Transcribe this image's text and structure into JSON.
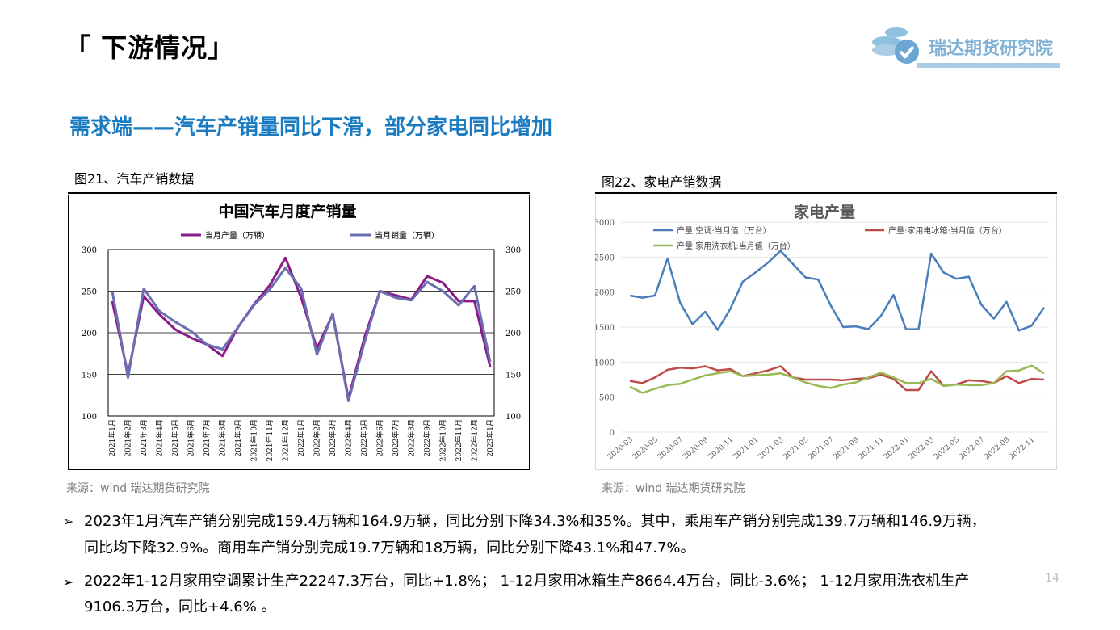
{
  "header": {
    "title": "「 下游情况」",
    "logo_text": "瑞达期货研究院"
  },
  "subtitle": "需求端——汽车产销量同比下滑，部分家电同比增加",
  "fig1": {
    "caption": "图21、汽车产销数据",
    "source": "来源：wind   瑞达期货研究院"
  },
  "fig2": {
    "caption": "图22、家电产销数据",
    "source": "来源：wind   瑞达期货研究院"
  },
  "chart_data": [
    {
      "type": "line",
      "title": "中国汽车月度产销量",
      "ylim": [
        100,
        300
      ],
      "yticks": [
        100,
        150,
        200,
        250,
        300
      ],
      "secondary_yticks": [
        100,
        150,
        200,
        250,
        300
      ],
      "legend_position": "top",
      "grid": true,
      "categories": [
        "2021年1月",
        "2021年2月",
        "2021年3月",
        "2021年4月",
        "2021年5月",
        "2021年6月",
        "2021年7月",
        "2021年8月",
        "2021年9月",
        "2021年10月",
        "2021年11月",
        "2021年12月",
        "2022年1月",
        "2022年2月",
        "2022年3月",
        "2022年4月",
        "2022年5月",
        "2022年6月",
        "2022年7月",
        "2022年8月",
        "2022年9月",
        "2022年10月",
        "2022年11月",
        "2022年12月",
        "2023年1月"
      ],
      "series": [
        {
          "name": "当月产量（万辆）",
          "color": "#8b1a89",
          "values": [
            238,
            150,
            244,
            222,
            204,
            194,
            186,
            172,
            207,
            234,
            257,
            290,
            242,
            181,
            222,
            121,
            193,
            250,
            245,
            240,
            268,
            260,
            238,
            238,
            159
          ]
        },
        {
          "name": "当月销量（万辆）",
          "color": "#6a6fb0",
          "values": [
            250,
            146,
            253,
            226,
            213,
            202,
            186,
            180,
            207,
            233,
            252,
            278,
            253,
            174,
            223,
            118,
            187,
            250,
            242,
            239,
            261,
            250,
            233,
            256,
            165
          ]
        }
      ]
    },
    {
      "type": "line",
      "title": "家电产量",
      "ylim": [
        0,
        3000
      ],
      "yticks": [
        0,
        500,
        1000,
        1500,
        2000,
        2500,
        3000
      ],
      "legend_position": "top",
      "grid": true,
      "x_ticks": [
        "2020-03",
        "2020-05",
        "2020-07",
        "2020-09",
        "2020-11",
        "2021-01",
        "2021-03",
        "2021-05",
        "2021-07",
        "2021-09",
        "2021-11",
        "2022-01",
        "2022-03",
        "2022-05",
        "2022-07",
        "2022-09",
        "2022-11"
      ],
      "x": [
        "2020-03",
        "2020-04",
        "2020-05",
        "2020-06",
        "2020-07",
        "2020-08",
        "2020-09",
        "2020-10",
        "2020-11",
        "2020-12",
        "2021-01",
        "2021-02",
        "2021-03",
        "2021-04",
        "2021-05",
        "2021-06",
        "2021-07",
        "2021-08",
        "2021-09",
        "2021-10",
        "2021-11",
        "2021-12",
        "2022-01",
        "2022-02",
        "2022-03",
        "2022-04",
        "2022-05",
        "2022-06",
        "2022-07",
        "2022-08",
        "2022-09",
        "2022-10",
        "2022-11",
        "2022-12"
      ],
      "series": [
        {
          "name": "产量:空调:当月值（万台）",
          "color": "#4a7ebb",
          "values": [
            1950,
            1920,
            1950,
            2480,
            1850,
            1540,
            1720,
            1460,
            1760,
            2150,
            2280,
            2420,
            2590,
            2400,
            2210,
            2180,
            1810,
            1500,
            1510,
            1470,
            1660,
            1960,
            1470,
            1470,
            2550,
            2280,
            2190,
            2220,
            1820,
            1620,
            1860,
            1450,
            1520,
            1780
          ]
        },
        {
          "name": "产量:家用电冰箱:当月值（万台）",
          "color": "#be4b48",
          "values": [
            730,
            700,
            780,
            890,
            920,
            910,
            940,
            880,
            900,
            800,
            840,
            880,
            940,
            780,
            750,
            750,
            750,
            740,
            760,
            770,
            820,
            760,
            600,
            600,
            870,
            660,
            680,
            740,
            730,
            700,
            800,
            700,
            760,
            750
          ]
        },
        {
          "name": "产量:家用洗衣机:当月值（万台）",
          "color": "#98b954",
          "values": [
            650,
            560,
            620,
            670,
            690,
            750,
            810,
            840,
            870,
            800,
            810,
            820,
            840,
            780,
            710,
            660,
            630,
            680,
            710,
            780,
            850,
            780,
            700,
            700,
            760,
            660,
            680,
            670,
            670,
            700,
            870,
            880,
            950,
            840
          ]
        }
      ]
    }
  ],
  "bullets": [
    {
      "arrow": "➢",
      "line1": "2023年1月汽车产销分别完成159.4万辆和164.9万辆，同比分别下降34.3%和35%。其中，乘用车产销分别完成139.7万辆和146.9万辆，",
      "line2": "同比均下降32.9%。商用车产销分别完成19.7万辆和18万辆，同比分别下降43.1%和47.7%。"
    },
    {
      "arrow": "➢",
      "line1": "2022年1-12月家用空调累计生产22247.3万台，同比+1.8%； 1-12月家用冰箱生产8664.4万台，同比-3.6%； 1-12月家用洗衣机生产",
      "line2": "9106.3万台，同比+4.6% 。"
    }
  ],
  "page_number": "14"
}
